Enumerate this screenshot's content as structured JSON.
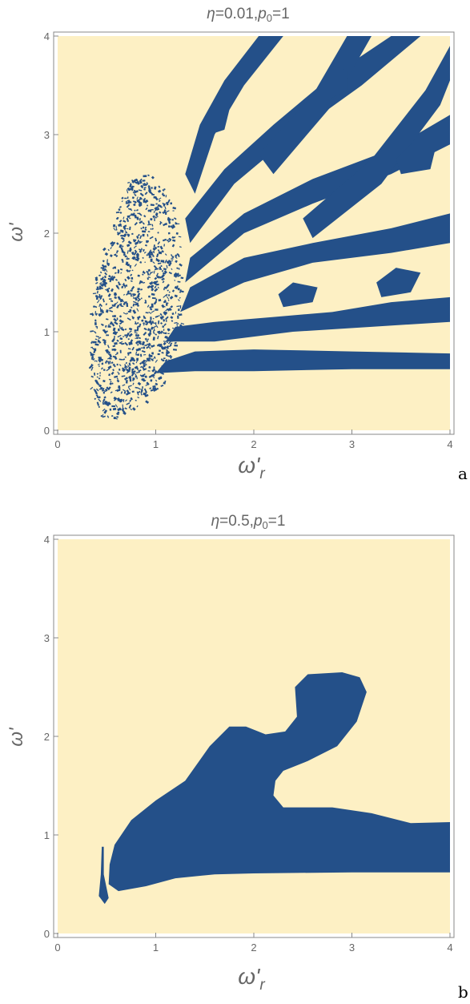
{
  "colors": {
    "background_region": "#fdf0c4",
    "blue_region": "#245089",
    "frame": "#888888",
    "text": "#666666"
  },
  "chart_data": [
    {
      "type": "heatmap",
      "panel_label": "a",
      "title_parts": {
        "eta_sym": "η",
        "eta_val": "=0.01,",
        "p_sym": "p",
        "p_sub": "0",
        "p_val": "=1"
      },
      "xlabel_parts": {
        "base": "ω'",
        "sub": "r"
      },
      "ylabel": "ω'",
      "xlim": [
        0,
        4
      ],
      "ylim": [
        0,
        4
      ],
      "xticks": [
        "0",
        "1",
        "2",
        "3",
        "4"
      ],
      "yticks": [
        "0",
        "1",
        "2",
        "3",
        "4"
      ],
      "grid": false,
      "regions": [
        {
          "name": "chaotic-speckle",
          "polygon": [
            [
              0.42,
              0.12
            ],
            [
              0.55,
              0.12
            ],
            [
              0.9,
              0.28
            ],
            [
              1.1,
              0.45
            ],
            [
              1.2,
              0.85
            ],
            [
              1.28,
              1.0
            ],
            [
              1.25,
              1.9
            ],
            [
              1.15,
              2.4
            ],
            [
              0.95,
              2.6
            ],
            [
              0.75,
              2.55
            ],
            [
              0.6,
              2.2
            ],
            [
              0.42,
              1.6
            ],
            [
              0.35,
              1.2
            ],
            [
              0.33,
              0.8
            ],
            [
              0.35,
              0.4
            ]
          ]
        },
        {
          "name": "stripe-bottom",
          "polygon": [
            [
              1.0,
              0.58
            ],
            [
              1.4,
              0.6
            ],
            [
              2.0,
              0.6
            ],
            [
              3.0,
              0.62
            ],
            [
              4.0,
              0.62
            ],
            [
              4.0,
              0.78
            ],
            [
              3.0,
              0.8
            ],
            [
              2.0,
              0.82
            ],
            [
              1.4,
              0.8
            ],
            [
              1.1,
              0.7
            ]
          ]
        },
        {
          "name": "stripe-low",
          "polygon": [
            [
              1.1,
              0.9
            ],
            [
              1.6,
              0.9
            ],
            [
              2.4,
              1.0
            ],
            [
              3.2,
              1.05
            ],
            [
              4.0,
              1.1
            ],
            [
              4.0,
              1.35
            ],
            [
              3.4,
              1.3
            ],
            [
              2.8,
              1.2
            ],
            [
              2.2,
              1.15
            ],
            [
              1.6,
              1.1
            ],
            [
              1.2,
              1.05
            ]
          ]
        },
        {
          "name": "band-1",
          "polygon": [
            [
              1.25,
              1.2
            ],
            [
              1.9,
              1.5
            ],
            [
              2.6,
              1.7
            ],
            [
              3.4,
              1.8
            ],
            [
              4.0,
              1.9
            ],
            [
              4.0,
              2.2
            ],
            [
              3.4,
              2.05
            ],
            [
              2.6,
              1.9
            ],
            [
              1.9,
              1.75
            ],
            [
              1.35,
              1.45
            ]
          ]
        },
        {
          "name": "band-2",
          "polygon": [
            [
              1.3,
              1.5
            ],
            [
              1.9,
              2.0
            ],
            [
              2.6,
              2.3
            ],
            [
              3.4,
              2.6
            ],
            [
              4.0,
              2.9
            ],
            [
              4.0,
              3.2
            ],
            [
              3.4,
              2.85
            ],
            [
              2.6,
              2.55
            ],
            [
              1.9,
              2.2
            ],
            [
              1.35,
              1.75
            ]
          ]
        },
        {
          "name": "band-3",
          "polygon": [
            [
              1.35,
              1.9
            ],
            [
              1.8,
              2.5
            ],
            [
              2.4,
              3.0
            ],
            [
              3.1,
              3.5
            ],
            [
              3.7,
              4.0
            ],
            [
              3.4,
              4.0
            ],
            [
              2.8,
              3.6
            ],
            [
              2.2,
              3.1
            ],
            [
              1.7,
              2.65
            ],
            [
              1.3,
              2.15
            ]
          ]
        },
        {
          "name": "band-4",
          "polygon": [
            [
              1.4,
              2.4
            ],
            [
              1.6,
              3.0
            ],
            [
              1.9,
              3.5
            ],
            [
              2.3,
              4.0
            ],
            [
              2.05,
              4.0
            ],
            [
              1.7,
              3.55
            ],
            [
              1.45,
              3.1
            ],
            [
              1.3,
              2.6
            ]
          ]
        },
        {
          "name": "band-5",
          "polygon": [
            [
              2.2,
              2.6
            ],
            [
              2.8,
              3.3
            ],
            [
              3.2,
              4.0
            ],
            [
              2.95,
              4.0
            ],
            [
              2.6,
              3.4
            ],
            [
              2.05,
              2.8
            ]
          ]
        },
        {
          "name": "band-6",
          "polygon": [
            [
              2.6,
              1.95
            ],
            [
              3.3,
              2.5
            ],
            [
              3.9,
              3.3
            ],
            [
              4.0,
              3.55
            ],
            [
              4.0,
              3.9
            ],
            [
              3.75,
              3.45
            ],
            [
              3.2,
              2.75
            ],
            [
              2.5,
              2.15
            ]
          ]
        },
        {
          "name": "isle-1",
          "polygon": [
            [
              1.55,
              3.0
            ],
            [
              1.7,
              3.05
            ],
            [
              1.75,
              3.25
            ],
            [
              1.65,
              3.35
            ],
            [
              1.52,
              3.2
            ]
          ]
        },
        {
          "name": "isle-2",
          "polygon": [
            [
              2.75,
              3.35
            ],
            [
              2.95,
              3.45
            ],
            [
              2.95,
              3.65
            ],
            [
              2.8,
              3.7
            ],
            [
              2.7,
              3.5
            ]
          ]
        },
        {
          "name": "isle-3",
          "polygon": [
            [
              3.3,
              1.35
            ],
            [
              3.6,
              1.4
            ],
            [
              3.7,
              1.6
            ],
            [
              3.45,
              1.65
            ],
            [
              3.25,
              1.5
            ]
          ]
        },
        {
          "name": "isle-4",
          "polygon": [
            [
              2.3,
              1.25
            ],
            [
              2.6,
              1.3
            ],
            [
              2.65,
              1.45
            ],
            [
              2.4,
              1.5
            ],
            [
              2.25,
              1.38
            ]
          ]
        },
        {
          "name": "isle-5",
          "polygon": [
            [
              3.5,
              2.6
            ],
            [
              3.8,
              2.65
            ],
            [
              3.85,
              2.85
            ],
            [
              3.6,
              2.9
            ],
            [
              3.45,
              2.75
            ]
          ]
        }
      ]
    },
    {
      "type": "heatmap",
      "panel_label": "b",
      "title_parts": {
        "eta_sym": "η",
        "eta_val": "=0.5,",
        "p_sym": "p",
        "p_sub": "0",
        "p_val": "=1"
      },
      "xlabel_parts": {
        "base": "ω'",
        "sub": "r"
      },
      "ylabel": "ω'",
      "xlim": [
        0,
        4
      ],
      "ylim": [
        0,
        4
      ],
      "xticks": [
        "0",
        "1",
        "2",
        "3",
        "4"
      ],
      "yticks": [
        "0",
        "1",
        "2",
        "3",
        "4"
      ],
      "grid": false,
      "regions": [
        {
          "name": "main-blob",
          "polygon": [
            [
              0.52,
              0.5
            ],
            [
              0.62,
              0.43
            ],
            [
              0.9,
              0.48
            ],
            [
              1.2,
              0.56
            ],
            [
              1.6,
              0.6
            ],
            [
              2.0,
              0.61
            ],
            [
              3.0,
              0.62
            ],
            [
              4.0,
              0.62
            ],
            [
              4.0,
              1.13
            ],
            [
              3.6,
              1.12
            ],
            [
              3.2,
              1.22
            ],
            [
              2.8,
              1.28
            ],
            [
              2.3,
              1.28
            ],
            [
              2.2,
              1.4
            ],
            [
              2.22,
              1.55
            ],
            [
              2.3,
              1.65
            ],
            [
              2.55,
              1.75
            ],
            [
              2.85,
              1.9
            ],
            [
              3.05,
              2.15
            ],
            [
              3.15,
              2.45
            ],
            [
              3.08,
              2.6
            ],
            [
              2.9,
              2.65
            ],
            [
              2.55,
              2.63
            ],
            [
              2.42,
              2.5
            ],
            [
              2.44,
              2.2
            ],
            [
              2.32,
              2.05
            ],
            [
              2.12,
              2.02
            ],
            [
              1.92,
              2.1
            ],
            [
              1.75,
              2.1
            ],
            [
              1.55,
              1.9
            ],
            [
              1.3,
              1.55
            ],
            [
              1.0,
              1.35
            ],
            [
              0.75,
              1.15
            ],
            [
              0.58,
              0.9
            ],
            [
              0.53,
              0.7
            ]
          ]
        },
        {
          "name": "sliver",
          "polygon": [
            [
              0.45,
              0.88
            ],
            [
              0.47,
              0.88
            ],
            [
              0.47,
              0.6
            ],
            [
              0.52,
              0.36
            ],
            [
              0.48,
              0.3
            ],
            [
              0.42,
              0.38
            ],
            [
              0.44,
              0.6
            ]
          ]
        }
      ]
    }
  ]
}
